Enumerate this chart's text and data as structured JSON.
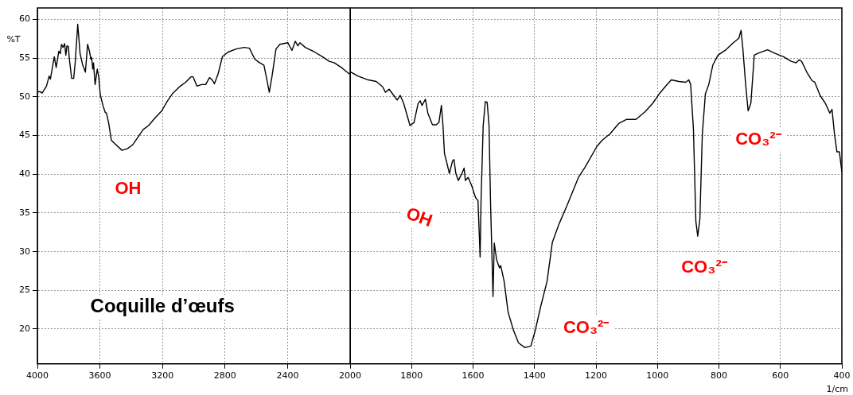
{
  "chart_data": [
    {
      "type": "line",
      "ylabel": "%T",
      "xlim": [
        4000,
        2000
      ],
      "xticks": [
        4000,
        3600,
        3200,
        2800,
        2400,
        2000
      ],
      "ylim": [
        15.5,
        61.5
      ],
      "yticks": [
        20,
        25,
        30,
        35,
        40,
        45,
        50,
        55,
        60
      ],
      "grid": true,
      "color": "#000000",
      "x": [
        4000,
        3985,
        3970,
        3942,
        3925,
        3917,
        3892,
        3880,
        3863,
        3853,
        3846,
        3836,
        3826,
        3818,
        3811,
        3802,
        3795,
        3781,
        3768,
        3758,
        3742,
        3727,
        3710,
        3700,
        3693,
        3679,
        3667,
        3658,
        3653,
        3646,
        3641,
        3631,
        3617,
        3608,
        3598,
        3581,
        3566,
        3558,
        3544,
        3527,
        3502,
        3459,
        3425,
        3391,
        3357,
        3323,
        3289,
        3247,
        3205,
        3171,
        3137,
        3086,
        3052,
        3018,
        3004,
        2980,
        2950,
        2924,
        2899,
        2882,
        2868,
        2844,
        2817,
        2780,
        2729,
        2678,
        2644,
        2610,
        2585,
        2551,
        2534,
        2517,
        2500,
        2474,
        2449,
        2398,
        2372,
        2351,
        2334,
        2321,
        2287,
        2227,
        2177,
        2134,
        2100,
        2049,
        2007,
        2000
      ],
      "values": [
        50.6,
        50.7,
        50.5,
        51.4,
        52.7,
        52.3,
        55.2,
        53.8,
        55.9,
        55.6,
        56.8,
        56.4,
        56.9,
        55.4,
        56.6,
        56.5,
        54.8,
        52.4,
        52.4,
        54.5,
        59.4,
        55.6,
        54.1,
        53.6,
        53.2,
        56.8,
        55.9,
        54.9,
        55.1,
        53.6,
        54.4,
        51.6,
        53.6,
        52.6,
        50.3,
        48.9,
        48.0,
        47.9,
        46.6,
        44.4,
        43.9,
        43.1,
        43.3,
        43.8,
        44.8,
        45.8,
        46.3,
        47.3,
        48.2,
        49.4,
        50.4,
        51.4,
        51.9,
        52.6,
        52.6,
        51.4,
        51.6,
        51.6,
        52.5,
        52.2,
        51.7,
        53.0,
        55.2,
        55.8,
        56.2,
        56.4,
        56.3,
        54.9,
        54.5,
        54.1,
        52.4,
        50.6,
        52.6,
        56.2,
        56.8,
        57.0,
        56.0,
        57.2,
        56.6,
        57.0,
        56.4,
        55.8,
        55.2,
        54.6,
        54.4,
        53.7,
        53.0,
        53.1
      ],
      "annotations": [
        "OH",
        "Coquille d’œufs"
      ]
    },
    {
      "type": "line",
      "xlabel": "1/cm",
      "xlim": [
        2000,
        400
      ],
      "xticks": [
        1800,
        1600,
        1400,
        1200,
        1000,
        800,
        600,
        400
      ],
      "ylim": [
        15.5,
        61.5
      ],
      "yticks": [
        20,
        25,
        30,
        35,
        40,
        45,
        50,
        55,
        60
      ],
      "tick_labels": "x",
      "grid": true,
      "color": "#000000",
      "x": [
        2000,
        1997,
        1975,
        1941,
        1915,
        1894,
        1885,
        1873,
        1860,
        1847,
        1837,
        1826,
        1813,
        1805,
        1792,
        1779,
        1772,
        1766,
        1755,
        1747,
        1732,
        1720,
        1711,
        1703,
        1698,
        1693,
        1686,
        1677,
        1667,
        1662,
        1656,
        1648,
        1635,
        1629,
        1625,
        1616,
        1605,
        1592,
        1584,
        1577,
        1574,
        1567,
        1560,
        1554,
        1548,
        1543,
        1535,
        1531,
        1523,
        1514,
        1510,
        1499,
        1486,
        1469,
        1452,
        1431,
        1412,
        1397,
        1380,
        1359,
        1342,
        1320,
        1295,
        1257,
        1236,
        1197,
        1180,
        1155,
        1125,
        1100,
        1070,
        1040,
        1015,
        994,
        973,
        955,
        930,
        908,
        898,
        892,
        883,
        875,
        869,
        862,
        854,
        844,
        833,
        820,
        803,
        777,
        756,
        735,
        728,
        722,
        713,
        705,
        696,
        685,
        675,
        642,
        616,
        590,
        565,
        549,
        539,
        531,
        514,
        497,
        488,
        471,
        454,
        439,
        432,
        424,
        416,
        408,
        400
      ],
      "values": [
        53.1,
        53.2,
        52.7,
        52.2,
        52.0,
        51.3,
        50.6,
        51.0,
        50.3,
        49.6,
        50.2,
        49.2,
        47.4,
        46.3,
        46.7,
        49.1,
        49.5,
        48.9,
        49.7,
        47.9,
        46.4,
        46.4,
        46.7,
        48.9,
        46.4,
        42.7,
        41.6,
        40.1,
        41.7,
        41.9,
        40.1,
        39.2,
        40.2,
        40.8,
        39.2,
        39.6,
        38.6,
        37.0,
        36.6,
        29.3,
        36.6,
        46.3,
        49.4,
        49.3,
        46.3,
        36.2,
        24.2,
        31.1,
        28.9,
        27.9,
        28.2,
        26.2,
        22.2,
        19.9,
        18.2,
        17.6,
        17.8,
        19.9,
        22.9,
        26.2,
        31.2,
        33.6,
        35.9,
        39.6,
        40.9,
        43.6,
        44.4,
        45.2,
        46.6,
        47.1,
        47.1,
        48.1,
        49.2,
        50.4,
        51.4,
        52.2,
        52.0,
        51.9,
        52.2,
        51.6,
        45.9,
        33.9,
        32.0,
        34.2,
        45.2,
        50.4,
        51.6,
        54.1,
        55.4,
        56.1,
        56.9,
        57.6,
        58.6,
        56.2,
        51.6,
        48.2,
        49.2,
        55.4,
        55.6,
        56.1,
        55.6,
        55.2,
        54.6,
        54.4,
        54.8,
        54.6,
        53.2,
        52.1,
        51.9,
        50.2,
        49.2,
        47.9,
        48.4,
        45.2,
        42.9,
        42.9,
        40.3
      ],
      "annotations": [
        "OH",
        "CO₃²⁻",
        "CO₃²⁻",
        "CO₃²⁻"
      ]
    }
  ]
}
